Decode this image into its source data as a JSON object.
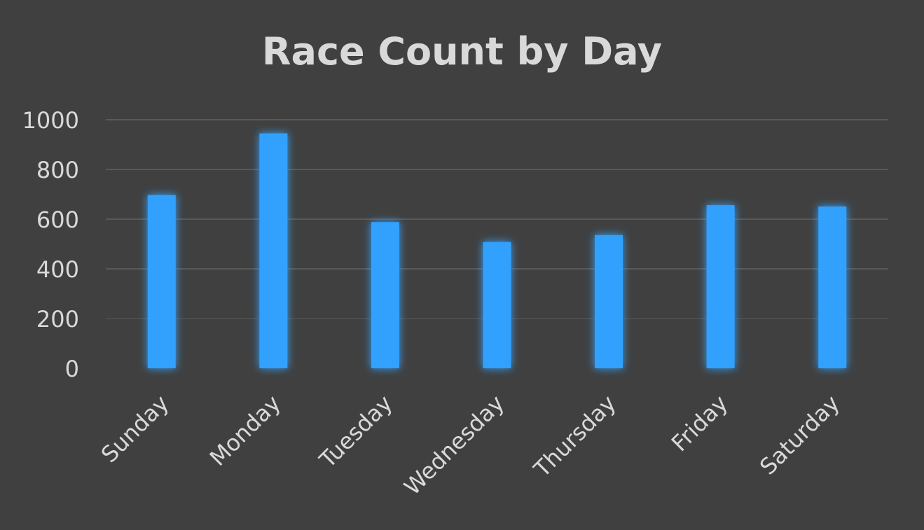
{
  "chart_data": {
    "type": "bar",
    "title": "Race Count by Day",
    "xlabel": "",
    "ylabel": "",
    "categories": [
      "Sunday",
      "Monday",
      "Tuesday",
      "Wednesday",
      "Thursday",
      "Friday",
      "Saturday"
    ],
    "values": [
      697,
      945,
      588,
      508,
      536,
      656,
      651
    ],
    "ylim": [
      0,
      1000
    ],
    "yticks": [
      "0",
      "200",
      "400",
      "600",
      "800",
      "1000"
    ],
    "grid": true,
    "legend": "none",
    "colors": {
      "background": "#404040",
      "bar": "#33a1fd",
      "bar_glow": "#3a8ee0",
      "grid": "#595959",
      "text": "#d9d9d9"
    }
  }
}
